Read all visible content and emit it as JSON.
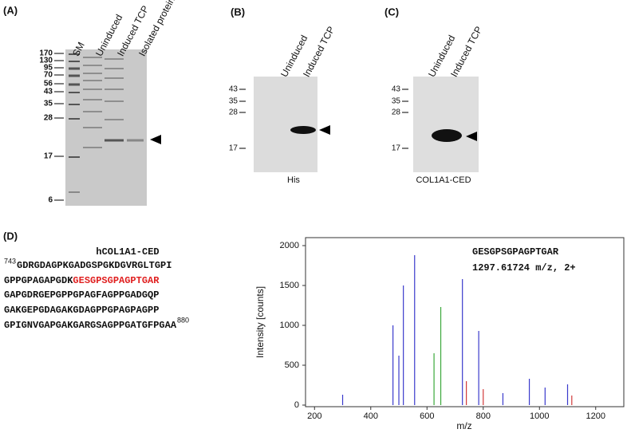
{
  "panels": {
    "a": {
      "label": "(A)",
      "lanes": [
        "SM",
        "Uninduced",
        "Induced TCP",
        "Isolated protein"
      ],
      "markers": [
        "170",
        "130",
        "95",
        "70",
        "56",
        "43",
        "35",
        "28",
        "17",
        "6"
      ]
    },
    "b": {
      "label": "(B)",
      "lanes": [
        "Uninduced",
        "Induced TCP"
      ],
      "markers": [
        "43",
        "35",
        "28",
        "17"
      ],
      "caption": "His"
    },
    "c": {
      "label": "(C)",
      "lanes": [
        "Uninduced",
        "Induced TCP"
      ],
      "markers": [
        "43",
        "35",
        "28",
        "17"
      ],
      "caption": "COL1A1-CED"
    },
    "d": {
      "label": "(D)",
      "title": "hCOL1A1-CED",
      "start": "743",
      "end": "880",
      "lines": [
        "GDRGDAGPKGADGSPGKDGVRGLTGPI",
        "GPPGPAGAPGDK",
        "GAPGDRGEPGPPGPAGFAGPPGADGQP",
        "GAKGEPGDAGAKGDAGPPGPAGPAGPP",
        "GPIGNVGAPGAKGARGSAGPPGATGFPGAA"
      ],
      "highlight": "GESGPSGPAGPTGAR"
    }
  },
  "chart_data": {
    "type": "stick",
    "title": "GESGPSGPAGPTGAR",
    "subtitle": "1297.61724 m/z, 2+",
    "x_label": "m/z",
    "y_label": "Intensity [counts]",
    "xlim": [
      168,
      1300
    ],
    "xticks": [
      200,
      400,
      600,
      800,
      1000,
      1200
    ],
    "ylim": [
      0,
      2100
    ],
    "yticks": [
      0,
      500,
      1000,
      1500,
      2000
    ],
    "series": [
      {
        "color": "#3a3acc",
        "x": [
          300,
          479,
          500,
          516,
          556,
          726,
          784,
          870,
          964,
          1020,
          1100
        ],
        "values": [
          130,
          1000,
          620,
          1500,
          1880,
          1580,
          930,
          150,
          330,
          220,
          260
        ]
      },
      {
        "color": "#3aa83a",
        "x": [
          625,
          649
        ],
        "values": [
          650,
          1230
        ]
      },
      {
        "color": "#d23a3a",
        "x": [
          740,
          800,
          1115
        ],
        "values": [
          300,
          200,
          120
        ]
      }
    ]
  }
}
